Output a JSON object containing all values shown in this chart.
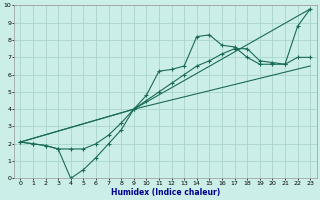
{
  "title": "",
  "xlabel": "Humidex (Indice chaleur)",
  "bg_color": "#cceee8",
  "grid_color": "#aad4cc",
  "line_color": "#1a6a5a",
  "xlim": [
    -0.5,
    23.5
  ],
  "ylim": [
    0,
    10
  ],
  "xticks": [
    0,
    1,
    2,
    3,
    4,
    5,
    6,
    7,
    8,
    9,
    10,
    11,
    12,
    13,
    14,
    15,
    16,
    17,
    18,
    19,
    20,
    21,
    22,
    23
  ],
  "yticks": [
    0,
    1,
    2,
    3,
    4,
    5,
    6,
    7,
    8,
    9,
    10
  ],
  "series": [
    {
      "x": [
        0,
        1,
        2,
        3,
        4,
        5,
        6,
        7,
        8,
        9,
        10,
        11,
        12,
        13,
        14,
        15,
        16,
        17,
        18,
        19,
        20,
        21,
        22,
        23
      ],
      "y": [
        2.1,
        2.0,
        1.9,
        1.7,
        0.0,
        0.5,
        1.2,
        2.0,
        2.8,
        4.0,
        4.8,
        6.2,
        6.3,
        6.5,
        8.2,
        8.3,
        7.7,
        7.6,
        7.0,
        6.6,
        6.6,
        6.6,
        8.8,
        9.8
      ],
      "marker": true
    },
    {
      "x": [
        0,
        1,
        2,
        3,
        4,
        5,
        6,
        7,
        8,
        9,
        10,
        11,
        12,
        13,
        14,
        15,
        16,
        17,
        18,
        19,
        20,
        21,
        22,
        23
      ],
      "y": [
        2.1,
        2.0,
        1.9,
        1.7,
        1.7,
        1.7,
        2.0,
        2.5,
        3.2,
        4.0,
        4.5,
        5.0,
        5.5,
        6.0,
        6.5,
        6.8,
        7.2,
        7.5,
        7.5,
        6.8,
        6.7,
        6.6,
        7.0,
        7.0
      ],
      "marker": true
    },
    {
      "x": [
        0,
        9,
        23
      ],
      "y": [
        2.1,
        4.0,
        9.8
      ],
      "marker": false
    },
    {
      "x": [
        0,
        9,
        23
      ],
      "y": [
        2.1,
        4.0,
        6.5
      ],
      "marker": false
    }
  ],
  "xlabel_fontsize": 5.5,
  "xlabel_color": "#00008b",
  "tick_fontsize": 4.5
}
